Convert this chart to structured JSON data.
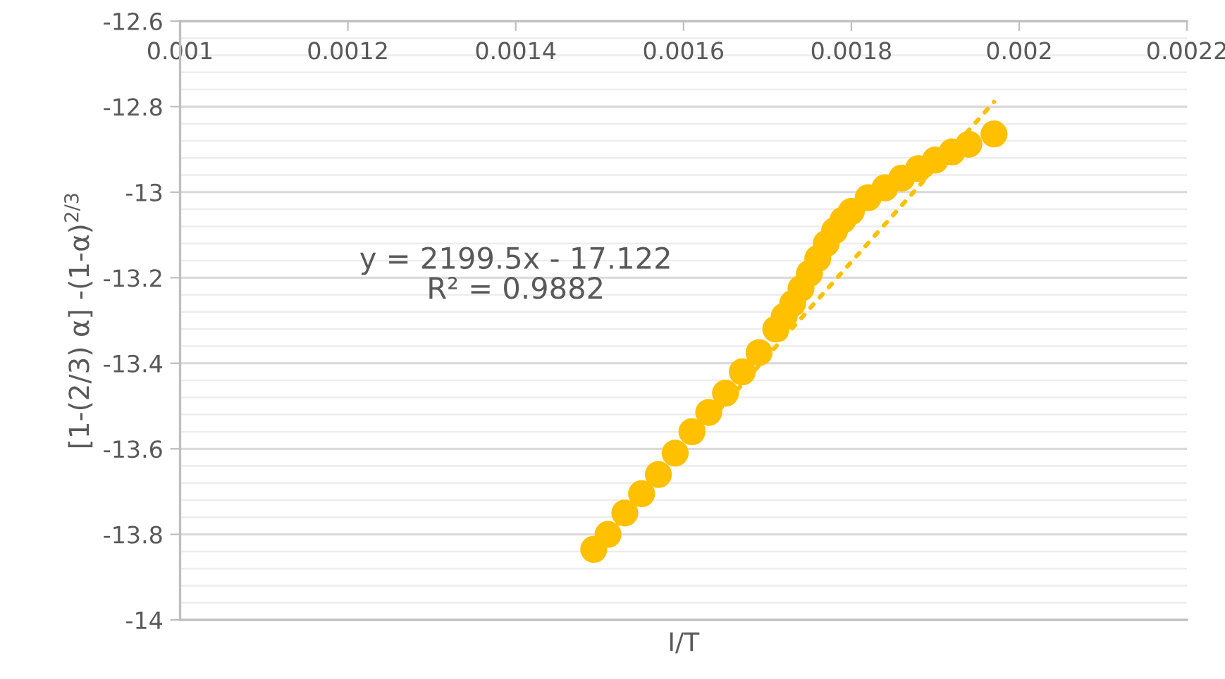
{
  "chart_data": {
    "type": "scatter",
    "xlabel": "I/T",
    "ylabel": "[1-(2/3) α] -(1-α)$^{2/3}$",
    "xlim": [
      0.001,
      0.0022
    ],
    "xticks": [
      0.001,
      0.0012,
      0.0014,
      0.0016,
      0.0018,
      0.002,
      0.0022
    ],
    "ylim": [
      -14,
      -12.6
    ],
    "yticks": [
      -14,
      -13.8,
      -13.6,
      -13.4,
      -13.2,
      -13,
      -12.8,
      -12.6
    ],
    "grid": "y",
    "annotations": [
      "y = 2199.5x - 17.122",
      "R² = 0.9882"
    ],
    "series": [
      {
        "type": "line",
        "line_style": "dotted",
        "color": "#ffc000",
        "x": [
          0.0015,
          0.00197
        ],
        "values": [
          -13.823,
          -12.789
        ]
      },
      {
        "color": "#ffc000",
        "marker": "circle",
        "x": [
          0.001493,
          0.00151,
          0.00153,
          0.00155,
          0.00157,
          0.00159,
          0.00161,
          0.00163,
          0.00165,
          0.00167,
          0.00169,
          0.00171,
          0.00172,
          0.00173,
          0.00174,
          0.00175,
          0.00176,
          0.00177,
          0.00178,
          0.00179,
          0.0018,
          0.00182,
          0.00184,
          0.00186,
          0.00188,
          0.0019,
          0.00192,
          0.00194,
          0.00197
        ],
        "values": [
          -13.835,
          -13.8,
          -13.75,
          -13.705,
          -13.66,
          -13.61,
          -13.56,
          -13.515,
          -13.47,
          -13.42,
          -13.375,
          -13.32,
          -13.29,
          -13.26,
          -13.225,
          -13.19,
          -13.155,
          -13.12,
          -13.09,
          -13.065,
          -13.045,
          -13.013,
          -12.99,
          -12.967,
          -12.945,
          -12.925,
          -12.906,
          -12.888,
          -12.864
        ]
      }
    ]
  }
}
